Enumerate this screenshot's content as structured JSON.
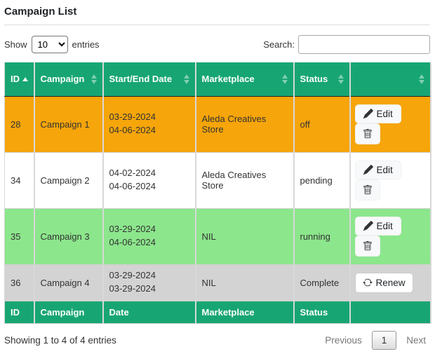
{
  "title": "Campaign List",
  "controls": {
    "show_label": "Show",
    "entries_label": "entries",
    "page_length_selected": "10",
    "page_length_options": [
      "10"
    ],
    "search_label": "Search:",
    "search_value": ""
  },
  "table": {
    "header": [
      "ID",
      "Campaign",
      "Start/End Date",
      "Marketplace",
      "Status",
      ""
    ],
    "footer": [
      "ID",
      "Campaign",
      "Date",
      "Marketplace",
      "Status",
      ""
    ],
    "sorted_column": "ID",
    "sorted_direction": "asc",
    "action_labels": {
      "edit": "Edit",
      "renew": "Renew"
    },
    "rows": [
      {
        "id": "28",
        "campaign": "Campaign 1",
        "dates": [
          "03-29-2024",
          "04-06-2024"
        ],
        "marketplace": "Aleda Creatives Store",
        "status": "off",
        "bg": "#F6A50A",
        "actions": [
          "edit",
          "delete"
        ]
      },
      {
        "id": "34",
        "campaign": "Campaign 2",
        "dates": [
          "04-02-2024",
          "04-06-2024"
        ],
        "marketplace": "Aleda Creatives Store",
        "status": "pending",
        "bg": "#FFFFFF",
        "actions": [
          "edit",
          "delete"
        ]
      },
      {
        "id": "35",
        "campaign": "Campaign 3",
        "dates": [
          "03-29-2024",
          "04-06-2024"
        ],
        "marketplace": "NIL",
        "status": "running",
        "bg": "#8CE68C",
        "actions": [
          "edit",
          "delete"
        ]
      },
      {
        "id": "36",
        "campaign": "Campaign 4",
        "dates": [
          "03-29-2024",
          "03-29-2024"
        ],
        "marketplace": "NIL",
        "status": "Complete",
        "bg": "#D3D3D3",
        "actions": [
          "renew"
        ]
      }
    ]
  },
  "summary": "Showing 1 to 4 of 4 entries",
  "pagination": {
    "previous_label": "Previous",
    "current_page": "1",
    "next_label": "Next"
  },
  "icons": {
    "edit": "pencil-icon",
    "delete": "trash-icon",
    "renew": "refresh-icon",
    "sort": "sort-arrows-icon"
  },
  "colors": {
    "header_green": "#17A673",
    "row_off": "#F6A50A",
    "row_pending": "#FFFFFF",
    "row_running": "#8CE68C",
    "row_complete": "#D3D3D3"
  }
}
